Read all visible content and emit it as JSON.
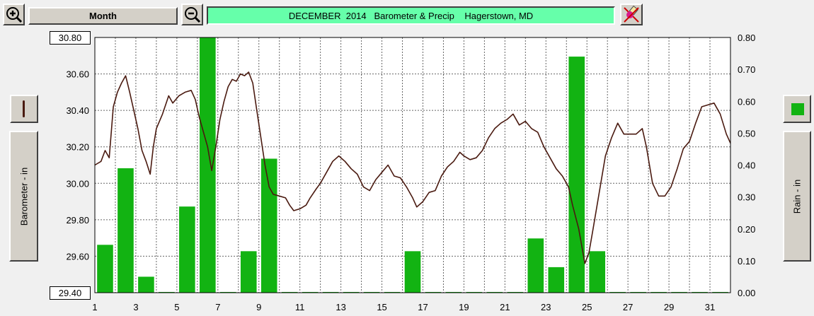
{
  "toolbar": {
    "period_label": "Month",
    "title": "DECEMBER  2014   Barometer & Precip    Hagerstown, MD"
  },
  "icons": {
    "zoom_in": "zoom-in-icon",
    "zoom_out": "zoom-out-icon",
    "clear": "eraser-icon"
  },
  "left_axis": {
    "label": "Barometer - in",
    "top_value": "30.80",
    "bottom_value": "29.40"
  },
  "right_axis": {
    "label": "Rain - in"
  },
  "colors": {
    "pressure": "#4a1a10",
    "rain": "#12b312",
    "grid": "#000000",
    "title_bg": "#66ffaa"
  },
  "chart_data": {
    "type": "bar",
    "title": "DECEMBER  2014   Barometer & Precip    Hagerstown, MD",
    "x_ticks": [
      "1",
      "3",
      "5",
      "7",
      "9",
      "11",
      "13",
      "15",
      "17",
      "19",
      "21",
      "23",
      "25",
      "27",
      "29",
      "31"
    ],
    "xlim": [
      1,
      32
    ],
    "grid": true,
    "series": [
      {
        "name": "Barometer - in",
        "kind": "line",
        "axis": "left",
        "ylim": [
          29.4,
          30.8
        ],
        "y_ticks": [
          "30.80",
          "30.60",
          "30.40",
          "30.20",
          "30.00",
          "29.80",
          "29.60",
          "29.40"
        ],
        "points": [
          [
            1.0,
            30.1
          ],
          [
            1.3,
            30.12
          ],
          [
            1.5,
            30.18
          ],
          [
            1.7,
            30.14
          ],
          [
            1.9,
            30.42
          ],
          [
            2.1,
            30.5
          ],
          [
            2.3,
            30.55
          ],
          [
            2.5,
            30.59
          ],
          [
            2.7,
            30.5
          ],
          [
            2.9,
            30.4
          ],
          [
            3.1,
            30.3
          ],
          [
            3.3,
            30.18
          ],
          [
            3.5,
            30.12
          ],
          [
            3.7,
            30.05
          ],
          [
            3.85,
            30.2
          ],
          [
            4.0,
            30.3
          ],
          [
            4.3,
            30.38
          ],
          [
            4.6,
            30.48
          ],
          [
            4.8,
            30.44
          ],
          [
            5.1,
            30.48
          ],
          [
            5.4,
            30.5
          ],
          [
            5.7,
            30.51
          ],
          [
            5.9,
            30.46
          ],
          [
            6.1,
            30.36
          ],
          [
            6.3,
            30.28
          ],
          [
            6.5,
            30.2
          ],
          [
            6.7,
            30.07
          ],
          [
            6.9,
            30.2
          ],
          [
            7.1,
            30.35
          ],
          [
            7.3,
            30.45
          ],
          [
            7.5,
            30.53
          ],
          [
            7.7,
            30.57
          ],
          [
            7.9,
            30.56
          ],
          [
            8.1,
            30.6
          ],
          [
            8.3,
            30.59
          ],
          [
            8.5,
            30.61
          ],
          [
            8.7,
            30.55
          ],
          [
            8.9,
            30.4
          ],
          [
            9.1,
            30.25
          ],
          [
            9.3,
            30.1
          ],
          [
            9.5,
            29.98
          ],
          [
            9.7,
            29.94
          ],
          [
            10.0,
            29.93
          ],
          [
            10.3,
            29.92
          ],
          [
            10.5,
            29.88
          ],
          [
            10.7,
            29.85
          ],
          [
            11.0,
            29.86
          ],
          [
            11.3,
            29.88
          ],
          [
            11.5,
            29.92
          ],
          [
            11.8,
            29.97
          ],
          [
            12.0,
            30.0
          ],
          [
            12.3,
            30.06
          ],
          [
            12.6,
            30.12
          ],
          [
            12.9,
            30.15
          ],
          [
            13.2,
            30.12
          ],
          [
            13.5,
            30.08
          ],
          [
            13.8,
            30.05
          ],
          [
            14.1,
            29.98
          ],
          [
            14.4,
            29.96
          ],
          [
            14.7,
            30.02
          ],
          [
            15.0,
            30.06
          ],
          [
            15.3,
            30.1
          ],
          [
            15.6,
            30.04
          ],
          [
            15.9,
            30.03
          ],
          [
            16.2,
            29.98
          ],
          [
            16.5,
            29.92
          ],
          [
            16.7,
            29.87
          ],
          [
            17.0,
            29.9
          ],
          [
            17.3,
            29.95
          ],
          [
            17.6,
            29.96
          ],
          [
            17.9,
            30.04
          ],
          [
            18.2,
            30.09
          ],
          [
            18.5,
            30.12
          ],
          [
            18.8,
            30.17
          ],
          [
            19.0,
            30.15
          ],
          [
            19.3,
            30.13
          ],
          [
            19.6,
            30.14
          ],
          [
            19.9,
            30.18
          ],
          [
            20.2,
            30.25
          ],
          [
            20.5,
            30.3
          ],
          [
            20.8,
            30.33
          ],
          [
            21.1,
            30.35
          ],
          [
            21.4,
            30.38
          ],
          [
            21.7,
            30.32
          ],
          [
            22.0,
            30.34
          ],
          [
            22.3,
            30.3
          ],
          [
            22.6,
            30.28
          ],
          [
            22.9,
            30.2
          ],
          [
            23.2,
            30.14
          ],
          [
            23.5,
            30.08
          ],
          [
            23.8,
            30.04
          ],
          [
            24.1,
            29.98
          ],
          [
            24.3,
            29.88
          ],
          [
            24.6,
            29.75
          ],
          [
            24.9,
            29.56
          ],
          [
            25.1,
            29.62
          ],
          [
            25.3,
            29.75
          ],
          [
            25.6,
            29.95
          ],
          [
            25.9,
            30.15
          ],
          [
            26.2,
            30.25
          ],
          [
            26.5,
            30.33
          ],
          [
            26.8,
            30.27
          ],
          [
            27.1,
            30.27
          ],
          [
            27.4,
            30.27
          ],
          [
            27.7,
            30.3
          ],
          [
            27.9,
            30.2
          ],
          [
            28.2,
            30.0
          ],
          [
            28.5,
            29.93
          ],
          [
            28.8,
            29.93
          ],
          [
            29.1,
            29.98
          ],
          [
            29.4,
            30.08
          ],
          [
            29.7,
            30.19
          ],
          [
            30.0,
            30.23
          ],
          [
            30.3,
            30.33
          ],
          [
            30.6,
            30.42
          ],
          [
            30.9,
            30.43
          ],
          [
            31.2,
            30.44
          ],
          [
            31.5,
            30.38
          ],
          [
            31.8,
            30.27
          ],
          [
            32.0,
            30.22
          ]
        ]
      },
      {
        "name": "Rain - in",
        "kind": "bar",
        "axis": "right",
        "ylim": [
          0.0,
          0.8
        ],
        "y_ticks": [
          "0.80",
          "0.70",
          "0.60",
          "0.50",
          "0.40",
          "0.30",
          "0.20",
          "0.10",
          "0.00"
        ],
        "values": [
          0.15,
          0.39,
          0.05,
          0.0,
          0.27,
          0.8,
          0.0,
          0.13,
          0.42,
          0.0,
          0.0,
          0.0,
          0.0,
          0.0,
          0.0,
          0.13,
          0.0,
          0.0,
          0.0,
          0.0,
          0.0,
          0.17,
          0.08,
          0.74,
          0.13,
          0.0,
          0.0,
          0.0,
          0.0,
          0.0,
          0.0
        ]
      }
    ]
  }
}
